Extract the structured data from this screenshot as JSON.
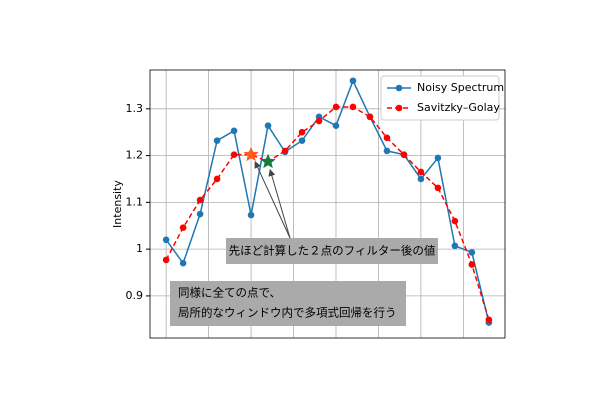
{
  "chart_data": {
    "type": "line",
    "y_label": "Intensity",
    "x": [
      0,
      1,
      2,
      3,
      4,
      5,
      6,
      7,
      8,
      9,
      10,
      11,
      12,
      13,
      14,
      15,
      16,
      17,
      18,
      19
    ],
    "xlim": [
      -0.95,
      19.95
    ],
    "xticks": [
      0,
      2.5,
      5,
      7.5,
      10,
      12.5,
      15,
      17.5
    ],
    "ylim": [
      0.81,
      1.383
    ],
    "yticks": [
      0.9,
      1.0,
      1.1,
      1.2,
      1.3
    ],
    "grid": true,
    "legend": "upper right",
    "series": [
      {
        "name": "Noisy Spectrum",
        "color": "#1f77b4",
        "style": "solid",
        "values": [
          1.02,
          0.97,
          1.075,
          1.232,
          1.253,
          1.073,
          1.264,
          1.208,
          1.232,
          1.283,
          1.264,
          1.36,
          1.283,
          1.21,
          1.202,
          1.15,
          1.195,
          1.007,
          0.993,
          0.843
        ]
      },
      {
        "name": "Savitzky–Golay",
        "color": "#ff0000",
        "style": "dashed",
        "values": [
          0.977,
          1.046,
          1.105,
          1.15,
          1.202,
          1.202,
          1.187,
          1.21,
          1.25,
          1.274,
          1.304,
          1.304,
          1.283,
          1.238,
          1.202,
          1.165,
          1.131,
          1.06,
          0.967,
          0.849
        ]
      }
    ],
    "annotations": [
      {
        "text": "先ほど計算した２点のフィルター後の値"
      },
      {
        "lines": [
          "同様に全ての点で、",
          "局所的なウィンドウ内で多項式回帰を行う"
        ]
      }
    ]
  }
}
